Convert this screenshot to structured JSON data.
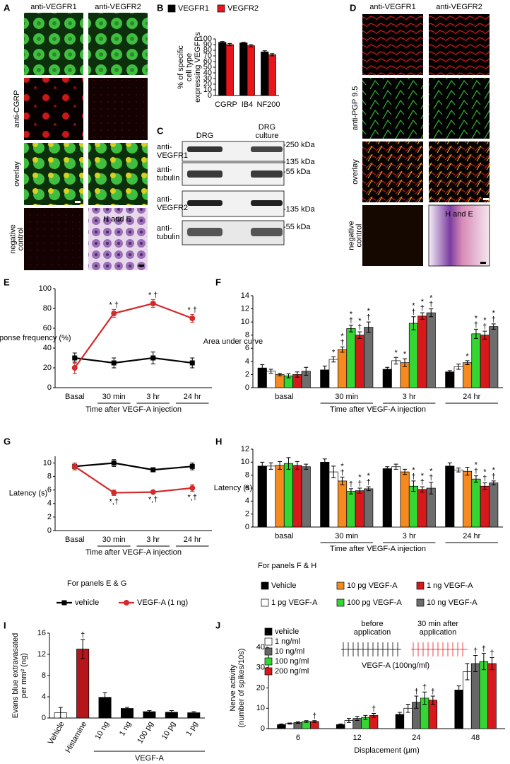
{
  "panel_labels": [
    "A",
    "B",
    "C",
    "D",
    "E",
    "F",
    "G",
    "H",
    "I",
    "J"
  ],
  "panel_a": {
    "columns": [
      "anti-VEGFR1",
      "anti-VEGFR2"
    ],
    "rows": [
      [
        "anti-CGRP"
      ],
      [
        "overlay"
      ],
      [
        "negative",
        "control"
      ]
    ],
    "stain": "H and E"
  },
  "panel_c": {
    "lanes": [
      [
        "DRG"
      ],
      [
        "DRG",
        "culture"
      ]
    ],
    "blots": [
      [
        "anti-",
        "VEGFR1"
      ],
      [
        "anti-",
        "tubulin"
      ],
      [
        "anti-",
        "VEGFR2"
      ],
      [
        "anti-",
        "tubulin"
      ]
    ],
    "markers": [
      "-250 kDa",
      "-135 kDa",
      "-55 kDa",
      "-135 kDa",
      "-55 kDa"
    ]
  },
  "panel_d": {
    "columns": [
      "anti-VEGFR1",
      "anti-VEGFR2"
    ],
    "rows": [
      [
        "anti-PGP 9.5"
      ],
      [
        "overlay"
      ],
      [
        "negative",
        "control"
      ]
    ],
    "stain": "H and E"
  },
  "panel_j_inset": {
    "before": [
      "before",
      "application"
    ],
    "after": [
      "30 min after",
      "application"
    ],
    "treatment": "VEGF-A (100ng/ml)"
  },
  "chart_data": [
    {
      "type": "bar",
      "categories": [
        "CGRP",
        "IB4",
        "NF200"
      ],
      "ylabel": [
        "% of specific",
        "cell type",
        "expressing VEGFRs"
      ],
      "ylim": [
        0,
        100
      ],
      "yticks": [
        0,
        10,
        20,
        30,
        40,
        50,
        60,
        70,
        80,
        90,
        100
      ],
      "series": [
        {
          "name": "VEGFR1",
          "color": "#000000",
          "values": [
            94,
            93,
            77
          ],
          "errors": [
            1.5,
            1,
            2
          ]
        },
        {
          "name": "VEGFR2",
          "color": "#e8161b",
          "values": [
            90,
            88,
            72
          ],
          "errors": [
            2,
            2,
            2
          ]
        }
      ]
    },
    {
      "type": "line",
      "categories": [
        "Basal",
        "30 min",
        "3 hr",
        "24 hr"
      ],
      "ylabel": "Response frequency (%)",
      "xlabel": "Time after VEGF-A injection",
      "ylim": [
        0,
        100
      ],
      "yticks": [
        0,
        20,
        40,
        60,
        80,
        100
      ],
      "legend_title": "For panels E & G",
      "annotation_position": "above",
      "series": [
        {
          "name": "vehicle",
          "color": "#000000",
          "marker": "square",
          "values": [
            30,
            25,
            30,
            25
          ],
          "errors": [
            5,
            5,
            6,
            5
          ],
          "annotations": [
            null,
            null,
            null,
            null
          ]
        },
        {
          "name": "VEGF-A (1 ng)",
          "color": "#d42a2a",
          "marker": "circle",
          "values": [
            20,
            75,
            85,
            70
          ],
          "errors": [
            6,
            4,
            4,
            4
          ],
          "annotations": [
            null,
            [
              "* †"
            ],
            [
              "* †"
            ],
            [
              "* †"
            ]
          ]
        }
      ]
    },
    {
      "type": "bar",
      "categories": [
        "basal",
        "30 min",
        "3 hr",
        "24 hr"
      ],
      "ylabel": "Area under curve",
      "xlabel": "Time after VEGF-A injection",
      "ylim": [
        0,
        14
      ],
      "yticks": [
        0,
        2,
        4,
        6,
        8,
        10,
        12,
        14
      ],
      "legend_title": "For panels F & H",
      "series": [
        {
          "name": "Vehicle",
          "color": "#000000",
          "values": [
            3,
            2.7,
            2.8,
            2.4
          ],
          "errors": [
            0.5,
            0.6,
            0.3,
            0.2
          ],
          "annotations": [
            null,
            null,
            null,
            null
          ]
        },
        {
          "name": "1 pg VEGF-A",
          "color": "#ffffff",
          "values": [
            2.5,
            4.3,
            4.1,
            3.2
          ],
          "errors": [
            0.3,
            0.4,
            0.5,
            0.4
          ],
          "annotations": [
            null,
            [
              "*"
            ],
            [
              "*"
            ],
            null
          ]
        },
        {
          "name": "10 pg VEGF-A",
          "color": "#f58a1f",
          "values": [
            2,
            5.8,
            3.8,
            3.8
          ],
          "errors": [
            0.2,
            0.4,
            0.6,
            0.3
          ],
          "annotations": [
            null,
            [
              "*",
              "†"
            ],
            [
              "*"
            ],
            [
              "*"
            ]
          ]
        },
        {
          "name": "100 pg VEGF-A",
          "color": "#33d633",
          "values": [
            1.8,
            9,
            9.8,
            8.2
          ],
          "errors": [
            0.3,
            0.5,
            1,
            0.7
          ],
          "annotations": [
            null,
            [
              "*",
              "†"
            ],
            [
              "*",
              "†"
            ],
            [
              "*",
              "†"
            ]
          ]
        },
        {
          "name": "1 ng VEGF-A",
          "color": "#d7191c",
          "values": [
            2,
            8,
            10.9,
            8
          ],
          "errors": [
            0.4,
            0.5,
            0.5,
            0.6
          ],
          "annotations": [
            null,
            [
              "*",
              "†"
            ],
            [
              "*",
              "†"
            ],
            [
              "*",
              "†"
            ]
          ]
        },
        {
          "name": "10 ng VEGF-A",
          "color": "#6d6d6d",
          "values": [
            2.5,
            9.2,
            11.4,
            9.3
          ],
          "errors": [
            0.6,
            0.8,
            0.6,
            0.4
          ],
          "annotations": [
            null,
            [
              "*",
              "†"
            ],
            [
              "*",
              "†"
            ],
            [
              "*",
              "†"
            ]
          ]
        }
      ]
    },
    {
      "type": "line",
      "categories": [
        "Basal",
        "30 min",
        "3 hr",
        "24 hr"
      ],
      "ylabel": "Latency (s)",
      "xlabel": "Time after VEGF-A injection",
      "ylim": [
        0,
        11
      ],
      "yticks": [
        0,
        2,
        4,
        6,
        8,
        10
      ],
      "annotation_position": "below",
      "series": [
        {
          "color": "#000000",
          "marker": "square",
          "values": [
            9.5,
            10,
            9,
            9.5
          ],
          "errors": [
            0.5,
            0.5,
            0.2,
            0.5
          ],
          "annotations": [
            null,
            null,
            null,
            null
          ]
        },
        {
          "color": "#d42a2a",
          "marker": "circle",
          "values": [
            9.5,
            5.6,
            5.7,
            6.3
          ],
          "errors": [
            0.5,
            0.4,
            0.2,
            0.5
          ],
          "annotations": [
            null,
            [
              "*,†"
            ],
            [
              "*,†"
            ],
            [
              "*,†"
            ]
          ]
        }
      ]
    },
    {
      "type": "bar",
      "categories": [
        "basal",
        "30 min",
        "3 hr",
        "24 hr"
      ],
      "ylabel": "Latency (s)",
      "xlabel": "Time after VEGF-A injection",
      "ylim": [
        0,
        12
      ],
      "yticks": [
        0,
        2,
        4,
        6,
        8,
        10,
        12
      ],
      "series": [
        {
          "color": "#000000",
          "values": [
            9.4,
            10,
            9,
            9.4
          ],
          "errors": [
            0.6,
            0.5,
            0.3,
            0.5
          ],
          "annotations": [
            null,
            null,
            null,
            null
          ]
        },
        {
          "color": "#ffffff",
          "values": [
            9.4,
            8.5,
            9.3,
            8.8
          ],
          "errors": [
            0.5,
            0.9,
            0.4,
            0.3
          ],
          "annotations": [
            null,
            null,
            null,
            null
          ]
        },
        {
          "color": "#f58a1f",
          "values": [
            9.5,
            7.1,
            8.5,
            8.6
          ],
          "errors": [
            0.6,
            0.6,
            0.4,
            0.6
          ],
          "annotations": [
            null,
            [
              "*",
              "†"
            ],
            null,
            null
          ]
        },
        {
          "color": "#33d633",
          "values": [
            9.8,
            5.5,
            6.3,
            7.4
          ],
          "errors": [
            0.9,
            0.4,
            0.8,
            0.5
          ],
          "annotations": [
            null,
            [
              "†"
            ],
            [
              "*",
              "†"
            ],
            [
              "*",
              "†"
            ]
          ]
        },
        {
          "color": "#d7191c",
          "values": [
            9.5,
            5.6,
            5.8,
            6.3
          ],
          "errors": [
            0.6,
            0.4,
            0.4,
            0.5
          ],
          "annotations": [
            null,
            [
              "*",
              "†"
            ],
            [
              "*",
              "†"
            ],
            [
              "*",
              "†"
            ]
          ]
        },
        {
          "color": "#6d6d6d",
          "values": [
            9.3,
            5.9,
            6,
            6.8
          ],
          "errors": [
            0.4,
            0.3,
            0.9,
            0.3
          ],
          "annotations": [
            null,
            [
              "*",
              "†"
            ],
            [
              "*",
              "†"
            ],
            [
              "*",
              "†"
            ]
          ]
        }
      ]
    },
    {
      "type": "bar",
      "categories": [
        "Vehicle",
        "Histamine",
        "10 ng",
        "1 ng",
        "100 pg",
        "10 pg",
        "1 pg"
      ],
      "ylabel": [
        "Evans blue extravasated",
        "per mm² (ng)"
      ],
      "xgroup_label": "VEGF-A",
      "ylim": [
        0,
        16
      ],
      "yticks": [
        0,
        4,
        8,
        12,
        16
      ],
      "series": [
        {
          "colors": [
            "#ffffff",
            "#b5161b",
            "#000000",
            "#000000",
            "#000000",
            "#000000",
            "#000000"
          ],
          "values": [
            1,
            13,
            3.9,
            1.8,
            1.2,
            1.1,
            1
          ],
          "errors": [
            1,
            1.8,
            0.9,
            0.2,
            0.2,
            0.3,
            0.2
          ],
          "annotations": [
            null,
            [
              "†"
            ],
            null,
            null,
            null,
            null,
            null
          ]
        }
      ]
    },
    {
      "type": "bar",
      "categories": [
        "6",
        "12",
        "24",
        "48"
      ],
      "ylabel": [
        "Nerve activity",
        "(number of spikes/10s)"
      ],
      "xlabel": "Displacement (µm)",
      "ylim": [
        0,
        40
      ],
      "yticks": [
        0,
        10,
        20,
        30,
        40
      ],
      "series": [
        {
          "name": "vehicle",
          "color": "#000000",
          "values": [
            2,
            2,
            7,
            19
          ],
          "errors": [
            0.3,
            0.3,
            1,
            2
          ],
          "annotations": [
            null,
            null,
            null,
            null
          ]
        },
        {
          "name": "1 ng/ml",
          "color": "#ffffff",
          "values": [
            2.5,
            4,
            10,
            28
          ],
          "errors": [
            0.3,
            1,
            2,
            4
          ],
          "annotations": [
            null,
            null,
            null,
            null
          ]
        },
        {
          "name": "10 ng/ml",
          "color": "#666666",
          "values": [
            3,
            5,
            13,
            32
          ],
          "errors": [
            0.4,
            1,
            3,
            4
          ],
          "annotations": [
            null,
            null,
            [
              "†"
            ],
            [
              "†"
            ]
          ]
        },
        {
          "name": "100 ng/ml",
          "color": "#33d633",
          "values": [
            3.5,
            5.5,
            15,
            33
          ],
          "errors": [
            0.4,
            1,
            3,
            4
          ],
          "annotations": [
            null,
            null,
            [
              "†"
            ],
            [
              "†"
            ]
          ]
        },
        {
          "name": "200 ng/ml",
          "color": "#d7191c",
          "values": [
            3.5,
            6.5,
            14,
            32
          ],
          "errors": [
            0.4,
            1,
            2,
            3
          ],
          "annotations": [
            [
              "†"
            ],
            [
              "†"
            ],
            [
              "†"
            ],
            [
              "†"
            ]
          ]
        }
      ]
    }
  ]
}
